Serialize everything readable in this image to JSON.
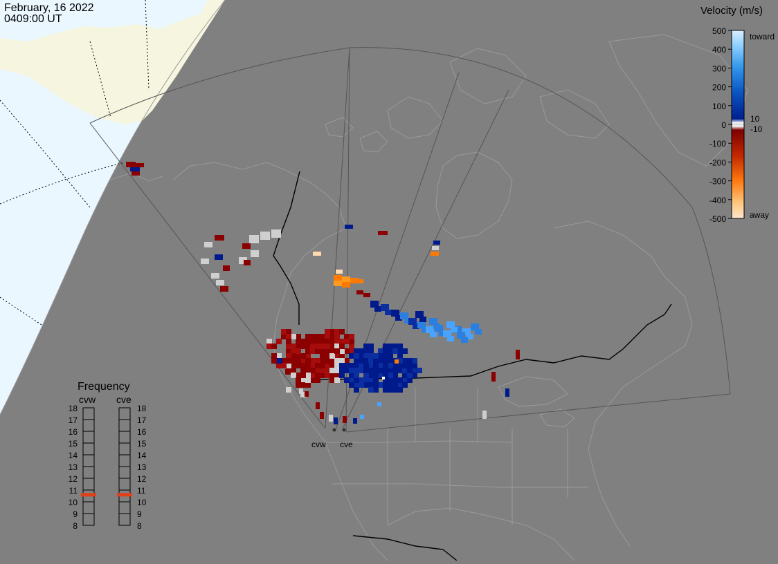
{
  "header": {
    "date": "February, 16 2022",
    "time": "0409:00 UT"
  },
  "colorbar": {
    "title": "Velocity (m/s)",
    "ticks": [
      "500",
      "400",
      "300",
      "200",
      "100",
      "0",
      "-100",
      "-200",
      "-300",
      "-400",
      "-500"
    ],
    "label_toward": "toward",
    "label_away": "away",
    "label_pos_threshold": "10",
    "label_neg_threshold": "-10",
    "gradient_colors": [
      "#cfe8ff",
      "#7fc4ff",
      "#2a8fe6",
      "#0b5cc8",
      "#001f8f",
      "#ffffff",
      "#7d0000",
      "#b31a00",
      "#e84a00",
      "#ff9a1a",
      "#ffd9b3"
    ]
  },
  "frequency_panel": {
    "title": "Frequency",
    "left_label": "cvw",
    "right_label": "cve",
    "scale": [
      "18",
      "17",
      "16",
      "15",
      "14",
      "13",
      "12",
      "11",
      "10",
      "9",
      "8"
    ],
    "cvw_mhz": 10.6,
    "cve_mhz": 10.6,
    "marker_color": "#e0401a"
  },
  "radars": [
    {
      "name": "cvw"
    },
    {
      "name": "cve"
    }
  ],
  "colors": {
    "background": "#808080",
    "ocean_night_edge": "#e8f6ff",
    "land_day": "#f6f6e0",
    "coast": "#9a9a9a",
    "border": "#000000",
    "fov": "#555555"
  }
}
